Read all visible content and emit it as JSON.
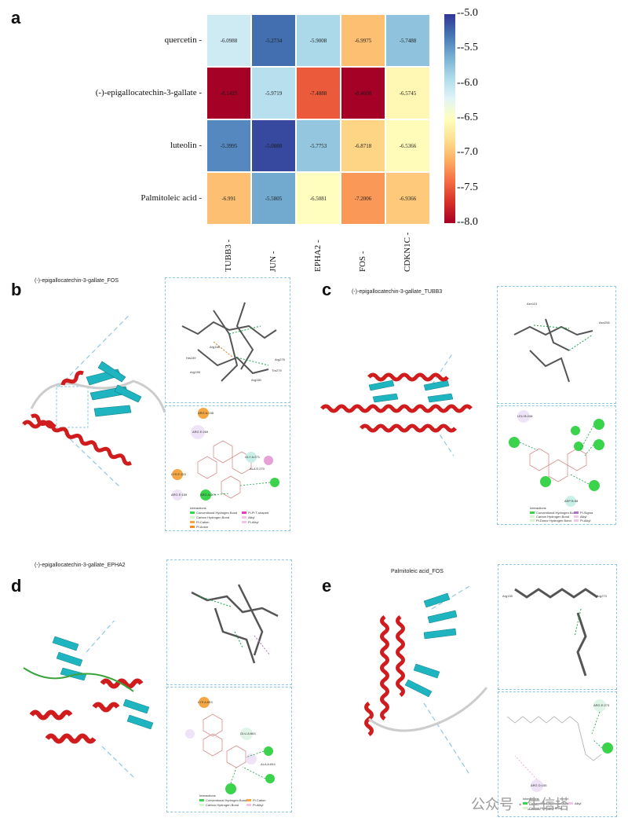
{
  "panel_letters": {
    "a": "a",
    "b": "b",
    "c": "c",
    "d": "d",
    "e": "e"
  },
  "colors": {
    "low": "#c8102e",
    "high": "#2a5ea8",
    "dash": "#8ec7e4",
    "helix": "#d01c1c",
    "sheet": "#1fb5c0",
    "coil": "#c8c8c8"
  },
  "chart_data": {
    "type": "heatmap",
    "rows": [
      "quercetin",
      "(-)-epigallocatechin-3-gallate",
      "luteolin",
      "Palmitoleic acid"
    ],
    "columns": [
      "TUBB3",
      "JUN",
      "EPHA2",
      "FOS",
      "CDKN1C"
    ],
    "values": [
      [
        -6.0988,
        -5.2734,
        -5.9008,
        -6.9975,
        -5.7488
      ],
      [
        -8.1429,
        -5.9719,
        -7.4888,
        -8.4608,
        -6.5745
      ],
      [
        -5.3995,
        -5.0888,
        -5.7753,
        -6.8718,
        -6.5366
      ],
      [
        -6.991,
        -5.5805,
        -6.5081,
        -7.2006,
        -6.9366
      ]
    ],
    "value_labels": [
      [
        "-6.0988",
        "-5.2734",
        "-5.9008",
        "-6.9975",
        "-5.7488"
      ],
      [
        "-8.1429",
        "-5.9719",
        "-7.4888",
        "-8.4608",
        "-6.5745"
      ],
      [
        "-5.3995",
        "-5.0888",
        "-5.7753",
        "-6.8718",
        "-6.5366"
      ],
      [
        "-6.991",
        "-5.5805",
        "-6.5081",
        "-7.2006",
        "-6.9366"
      ]
    ],
    "colorbar": {
      "range": [
        -8.0,
        -5.0
      ],
      "ticks": [
        "-5.0",
        "-5.5",
        "-6.0",
        "-6.5",
        "-7.0",
        "-7.5",
        "-8.0"
      ],
      "colormap": "RdYlBu"
    }
  },
  "panels": {
    "b": {
      "title": "(-)-epigallocatechin-3-gallate_FOS",
      "residues_3d": [
        "Arg158",
        "His159",
        "Arg155",
        "Arg276",
        "Thr279",
        "Arg280"
      ],
      "residues_2d": [
        "ARG A:158",
        "ARG E:269",
        "GLY A:271",
        "ALA E:270",
        "LYS E:153",
        "ARG E:159",
        "ARG A:279"
      ],
      "legend_title": "Interactions",
      "legend": [
        "Conventional Hydrogen Bond",
        "Carbon Hydrogen Bond",
        "Pi-Cation",
        "Pi-Anion",
        "Pi-Pi T-shaped",
        "Alkyl",
        "Pi-Alkyl"
      ]
    },
    "c": {
      "title": "(-)-epigallocatechin-3-gallate_TUBB3",
      "residues_3d": [
        "Asn101",
        "Asn206"
      ],
      "residues_2d": [
        "LEU B:248",
        "ASP B:98"
      ],
      "legend_title": "Interactions",
      "legend": [
        "Conventional Hydrogen Bond",
        "Carbon Hydrogen Bond",
        "Pi-Donor Hydrogen Bond",
        "Pi-Sigma",
        "Alkyl",
        "Pi-Alkyl"
      ]
    },
    "d": {
      "title": "(-)-epigallocatechin-3-gallate_EPHA2",
      "residues_2d": [
        "LYS A:653",
        "GLU A:663",
        "ALA A:644"
      ],
      "legend_title": "Interactions",
      "legend": [
        "Conventional Hydrogen Bond",
        "Carbon Hydrogen Bond",
        "Pi-Cation",
        "Pi-Alkyl"
      ]
    },
    "e": {
      "title": "Palmitoleic acid_FOS",
      "residues_3d": [
        "Arg155",
        "Arg273"
      ],
      "residues_2d": [
        "ARG E:273",
        "ARG D:155"
      ],
      "legend_title": "Interactions",
      "legend": [
        "Conventional Hydrogen Bond",
        "Carbon Hydrogen Bond",
        "Alkyl"
      ]
    }
  },
  "watermark": "公众号 · 生信塔"
}
